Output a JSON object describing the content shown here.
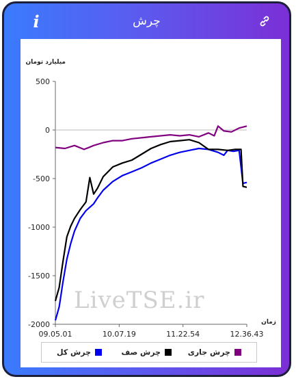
{
  "header": {
    "title": "چرش",
    "info_icon": "info-icon",
    "link_icon": "link-icon"
  },
  "watermark": "LiveTSE.ir",
  "chart_data": {
    "type": "line",
    "ylabel": "میلیارد تومان",
    "xlabel": "زمان",
    "ylim": [
      -2000,
      500
    ],
    "yticks": [
      "500",
      "0",
      "-500",
      "-1000",
      "-1500",
      "-2000"
    ],
    "yticks_values": [
      500,
      0,
      -500,
      -1000,
      -1500,
      -2000
    ],
    "xticks": [
      "09.05.01",
      "10.07.19",
      "11.22.54",
      "12.36.43"
    ],
    "zero_line": true,
    "legend_position": "bottom",
    "series": [
      {
        "name": "چرش کل",
        "color": "#0000ee",
        "x": [
          0,
          0.02,
          0.04,
          0.06,
          0.08,
          0.1,
          0.13,
          0.16,
          0.2,
          0.22,
          0.25,
          0.3,
          0.35,
          0.4,
          0.45,
          0.5,
          0.55,
          0.6,
          0.65,
          0.7,
          0.75,
          0.8,
          0.85,
          0.88,
          0.9,
          0.93,
          0.96,
          0.98,
          1.0
        ],
        "y": [
          -1960,
          -1820,
          -1560,
          -1330,
          -1170,
          -1040,
          -910,
          -830,
          -760,
          -700,
          -620,
          -530,
          -470,
          -430,
          -390,
          -340,
          -300,
          -260,
          -230,
          -210,
          -190,
          -200,
          -230,
          -260,
          -210,
          -220,
          -210,
          -550,
          -540
        ]
      },
      {
        "name": "چرش صف",
        "color": "#000000",
        "x": [
          0,
          0.02,
          0.04,
          0.06,
          0.08,
          0.1,
          0.13,
          0.16,
          0.18,
          0.2,
          0.22,
          0.25,
          0.3,
          0.35,
          0.4,
          0.45,
          0.5,
          0.55,
          0.6,
          0.65,
          0.7,
          0.75,
          0.8,
          0.85,
          0.9,
          0.94,
          0.97,
          0.98,
          1.0
        ],
        "y": [
          -1760,
          -1620,
          -1350,
          -1100,
          -990,
          -910,
          -820,
          -740,
          -490,
          -660,
          -600,
          -480,
          -380,
          -340,
          -310,
          -250,
          -190,
          -150,
          -120,
          -110,
          -100,
          -130,
          -200,
          -200,
          -210,
          -200,
          -200,
          -580,
          -590
        ]
      },
      {
        "name": "چرش جاری",
        "color": "#800080",
        "x": [
          0,
          0.05,
          0.1,
          0.15,
          0.2,
          0.25,
          0.3,
          0.35,
          0.4,
          0.45,
          0.5,
          0.55,
          0.6,
          0.65,
          0.7,
          0.75,
          0.8,
          0.83,
          0.85,
          0.88,
          0.92,
          0.96,
          1.0
        ],
        "y": [
          -180,
          -190,
          -160,
          -200,
          -160,
          -130,
          -110,
          -110,
          -90,
          -80,
          -70,
          -60,
          -50,
          -60,
          -50,
          -70,
          -30,
          -60,
          40,
          -10,
          -20,
          20,
          40
        ]
      }
    ]
  }
}
